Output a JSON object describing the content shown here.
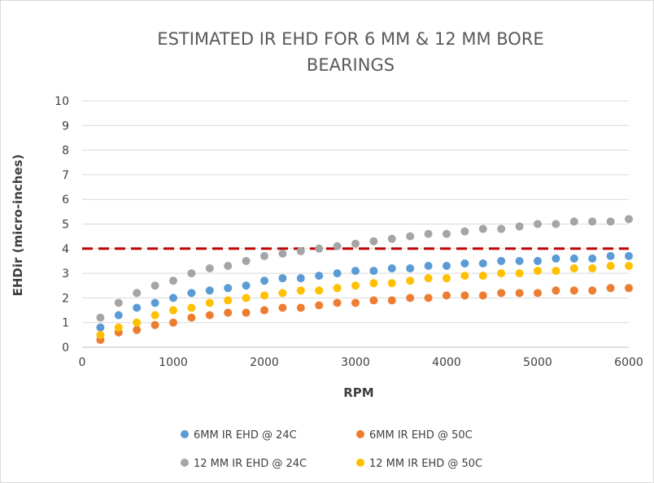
{
  "chart_data": {
    "type": "scatter",
    "title_lines": [
      "ESTIMATED IR EHD FOR 6 MM & 12 MM BORE",
      "BEARINGS"
    ],
    "xlabel": "RPM",
    "ylabel": "EHDir (micro-inches)",
    "xlim": [
      0,
      6000
    ],
    "ylim": [
      0,
      10
    ],
    "x_ticks": [
      "0",
      "1000",
      "2000",
      "3000",
      "4000",
      "5000",
      "6000"
    ],
    "y_ticks": [
      "0",
      "1",
      "2",
      "3",
      "4",
      "5",
      "6",
      "7",
      "8",
      "9",
      "10"
    ],
    "grid": "horizontal",
    "legend_position": "bottom",
    "reference_line": {
      "y": 4,
      "style": "dashed",
      "color": "#c00000"
    },
    "x": [
      200,
      400,
      600,
      800,
      1000,
      1200,
      1400,
      1600,
      1800,
      2000,
      2200,
      2400,
      2600,
      2800,
      3000,
      3200,
      3400,
      3600,
      3800,
      4000,
      4200,
      4400,
      4600,
      4800,
      5000,
      5200,
      5400,
      5600,
      5800,
      6000
    ],
    "series": [
      {
        "name": "6MM  IR EHD   @ 24C",
        "color": "#5b9bd5",
        "values": [
          0.8,
          1.3,
          1.6,
          1.8,
          2.0,
          2.2,
          2.3,
          2.4,
          2.5,
          2.7,
          2.8,
          2.8,
          2.9,
          3.0,
          3.1,
          3.1,
          3.2,
          3.2,
          3.3,
          3.3,
          3.4,
          3.4,
          3.5,
          3.5,
          3.5,
          3.6,
          3.6,
          3.6,
          3.7,
          3.7
        ]
      },
      {
        "name": "6MM IR EHD   @ 50C",
        "color": "#ed7d31",
        "values": [
          0.3,
          0.6,
          0.7,
          0.9,
          1.0,
          1.2,
          1.3,
          1.4,
          1.4,
          1.5,
          1.6,
          1.6,
          1.7,
          1.8,
          1.8,
          1.9,
          1.9,
          2.0,
          2.0,
          2.1,
          2.1,
          2.1,
          2.2,
          2.2,
          2.2,
          2.3,
          2.3,
          2.3,
          2.4,
          2.4
        ]
      },
      {
        "name": "12 MM IR EHD @ 24C",
        "color": "#a5a5a5",
        "values": [
          1.2,
          1.8,
          2.2,
          2.5,
          2.7,
          3.0,
          3.2,
          3.3,
          3.5,
          3.7,
          3.8,
          3.9,
          4.0,
          4.1,
          4.2,
          4.3,
          4.4,
          4.5,
          4.6,
          4.6,
          4.7,
          4.8,
          4.8,
          4.9,
          5.0,
          5.0,
          5.1,
          5.1,
          5.1,
          5.2
        ]
      },
      {
        "name": "12 MM IR EHD @ 50C",
        "color": "#ffc000",
        "values": [
          0.5,
          0.8,
          1.0,
          1.3,
          1.5,
          1.6,
          1.8,
          1.9,
          2.0,
          2.1,
          2.2,
          2.3,
          2.3,
          2.4,
          2.5,
          2.6,
          2.6,
          2.7,
          2.8,
          2.8,
          2.9,
          2.9,
          3.0,
          3.0,
          3.1,
          3.1,
          3.2,
          3.2,
          3.3,
          3.3
        ]
      }
    ]
  }
}
